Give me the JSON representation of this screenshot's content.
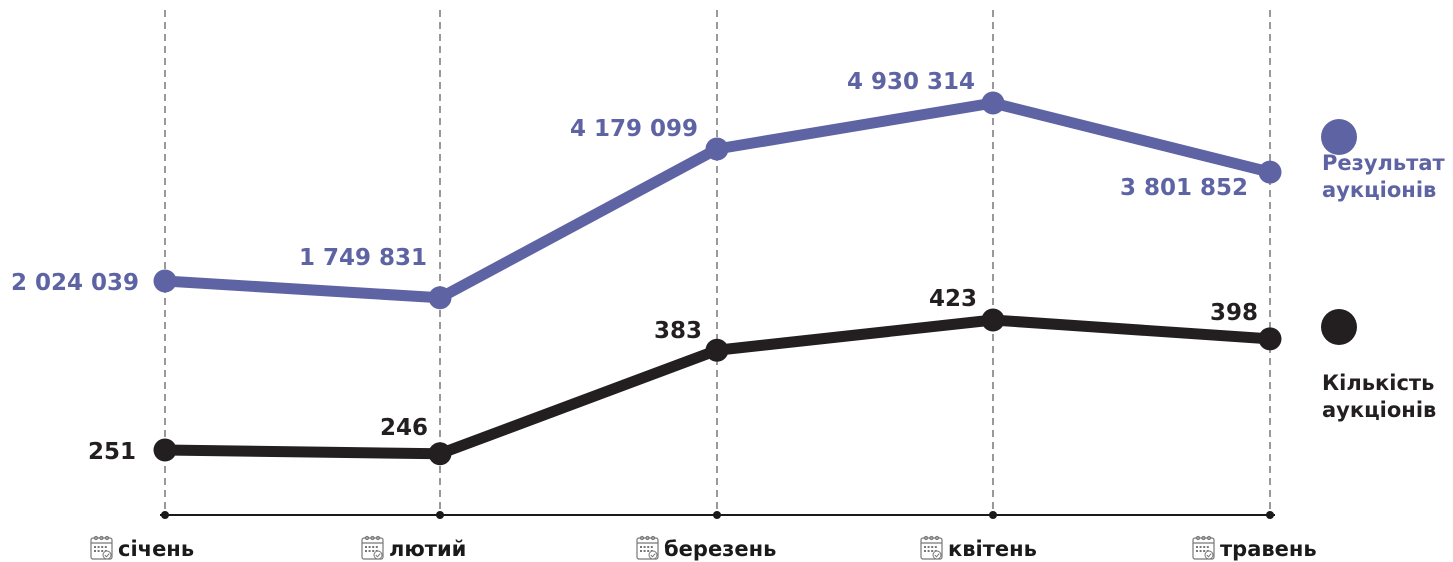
{
  "colors": {
    "results": "#5e63a3",
    "count": "#231f20",
    "grid": "#999999",
    "axis": "#1a1a1a"
  },
  "chart_data": {
    "type": "line",
    "categories": [
      "січень",
      "лютий",
      "березень",
      "квітень",
      "травень"
    ],
    "series": [
      {
        "key": "results",
        "name_lines": [
          "Результат",
          "аукціонів"
        ],
        "values": [
          2024039,
          1749831,
          4179099,
          4930314,
          3801852
        ],
        "labels": [
          "2 024 039",
          "1 749 831",
          "4 179 099",
          "4 930 314",
          "3 801 852"
        ]
      },
      {
        "key": "count",
        "name_lines": [
          "Кількість",
          "аукціонів"
        ],
        "values": [
          251,
          246,
          383,
          423,
          398
        ],
        "labels": [
          "251",
          "246",
          "383",
          "423",
          "398"
        ]
      }
    ],
    "category_icon": "calendar-icon",
    "grid": "vertical-dashed",
    "legend_position": "right"
  }
}
